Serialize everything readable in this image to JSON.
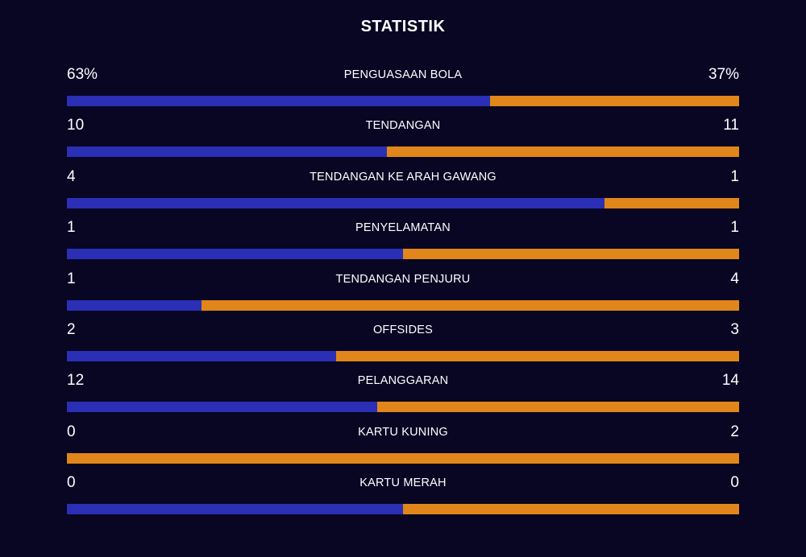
{
  "title": "STATISTIK",
  "colors": {
    "home": "#2a2fb5",
    "away": "#e0861a",
    "background": "#080623"
  },
  "stats": [
    {
      "label": "PENGUASAAN BOLA",
      "home": "63%",
      "away": "37%",
      "home_share": 0.63
    },
    {
      "label": "TENDANGAN",
      "home": "10",
      "away": "11",
      "home_share": 0.476
    },
    {
      "label": "TENDANGAN KE ARAH GAWANG",
      "home": "4",
      "away": "1",
      "home_share": 0.8
    },
    {
      "label": "PENYELAMATAN",
      "home": "1",
      "away": "1",
      "home_share": 0.5
    },
    {
      "label": "TENDANGAN PENJURU",
      "home": "1",
      "away": "4",
      "home_share": 0.2
    },
    {
      "label": "OFFSIDES",
      "home": "2",
      "away": "3",
      "home_share": 0.4
    },
    {
      "label": "PELANGGARAN",
      "home": "12",
      "away": "14",
      "home_share": 0.4615
    },
    {
      "label": "KARTU KUNING",
      "home": "0",
      "away": "2",
      "home_share": 0.0
    },
    {
      "label": "KARTU MERAH",
      "home": "0",
      "away": "0",
      "home_share": 0.5
    }
  ]
}
